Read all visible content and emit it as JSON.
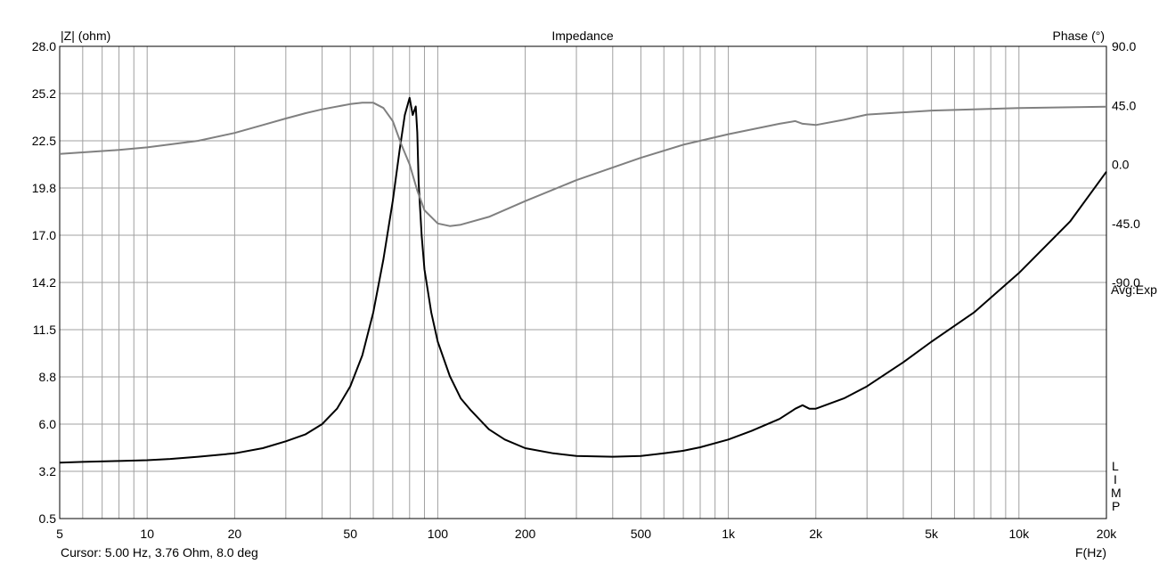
{
  "chart_data": {
    "type": "line",
    "title": "Impedance",
    "xlabel": "F(Hz)",
    "ylabel": "|Z| (ohm)",
    "y2label": "Phase (°)",
    "x_scale": "log",
    "xlim": [
      5,
      20000
    ],
    "ylim": [
      0.5,
      28.0
    ],
    "y2lim": [
      -270,
      90
    ],
    "grid": true,
    "x_tick_labels": [
      {
        "v": 5,
        "t": "5"
      },
      {
        "v": 10,
        "t": "10"
      },
      {
        "v": 20,
        "t": "20"
      },
      {
        "v": 50,
        "t": "50"
      },
      {
        "v": 100,
        "t": "100"
      },
      {
        "v": 200,
        "t": "200"
      },
      {
        "v": 500,
        "t": "500"
      },
      {
        "v": 1000,
        "t": "1k"
      },
      {
        "v": 2000,
        "t": "2k"
      },
      {
        "v": 5000,
        "t": "5k"
      },
      {
        "v": 10000,
        "t": "10k"
      },
      {
        "v": 20000,
        "t": "20k"
      }
    ],
    "y_tick_labels": [
      "0.5",
      "3.2",
      "6.0",
      "8.8",
      "11.5",
      "14.2",
      "17.0",
      "19.8",
      "22.5",
      "25.2",
      "28.0"
    ],
    "y2_tick_labels": [
      {
        "v": 90,
        "t": "90.0"
      },
      {
        "v": 45,
        "t": "45.0"
      },
      {
        "v": 0,
        "t": "0.0"
      },
      {
        "v": -45,
        "t": "-45.0"
      },
      {
        "v": -90,
        "t": "-90.0"
      }
    ],
    "series": [
      {
        "name": "|Z|",
        "axis": "left",
        "color": "#000000",
        "x": [
          5,
          6,
          8,
          10,
          12,
          15,
          20,
          25,
          30,
          35,
          40,
          45,
          50,
          55,
          60,
          65,
          70,
          74,
          77,
          80,
          82,
          84,
          85,
          86,
          88,
          90,
          95,
          100,
          110,
          120,
          130,
          150,
          170,
          200,
          250,
          300,
          400,
          500,
          600,
          700,
          800,
          1000,
          1200,
          1500,
          1700,
          1800,
          1900,
          2000,
          2500,
          3000,
          4000,
          5000,
          7000,
          10000,
          15000,
          20000
        ],
        "values": [
          3.76,
          3.8,
          3.85,
          3.9,
          3.97,
          4.1,
          4.3,
          4.6,
          5.0,
          5.4,
          6.0,
          6.9,
          8.2,
          10.0,
          12.5,
          15.6,
          19.0,
          22.0,
          24.0,
          25.0,
          24.0,
          24.5,
          23.0,
          20.0,
          17.0,
          15.0,
          12.5,
          10.8,
          8.8,
          7.5,
          6.8,
          5.7,
          5.1,
          4.6,
          4.3,
          4.15,
          4.1,
          4.15,
          4.3,
          4.45,
          4.65,
          5.1,
          5.6,
          6.3,
          6.9,
          7.1,
          6.9,
          6.9,
          7.5,
          8.2,
          9.6,
          10.8,
          12.5,
          14.8,
          17.8,
          20.7
        ]
      },
      {
        "name": "Phase",
        "axis": "right",
        "color": "#808080",
        "x": [
          5,
          8,
          10,
          15,
          20,
          25,
          30,
          35,
          40,
          50,
          55,
          60,
          65,
          70,
          75,
          80,
          85,
          90,
          100,
          110,
          120,
          150,
          200,
          300,
          500,
          700,
          1000,
          1500,
          1700,
          1800,
          2000,
          2500,
          3000,
          5000,
          10000,
          20000
        ],
        "values": [
          8,
          11,
          13,
          18,
          24,
          30,
          35,
          39,
          42,
          46,
          47,
          47,
          43,
          33,
          15,
          0,
          -20,
          -35,
          -45,
          -47,
          -46,
          -40,
          -28,
          -12,
          5,
          15,
          23,
          31,
          33,
          31,
          30,
          34,
          38,
          41,
          43,
          44
        ]
      }
    ]
  },
  "side_labels": {
    "avg": "Avg:Exp",
    "limp": [
      "L",
      "I",
      "M",
      "P"
    ]
  },
  "cursor_text": "Cursor: 5.00 Hz, 3.76 Ohm, 8.0 deg"
}
